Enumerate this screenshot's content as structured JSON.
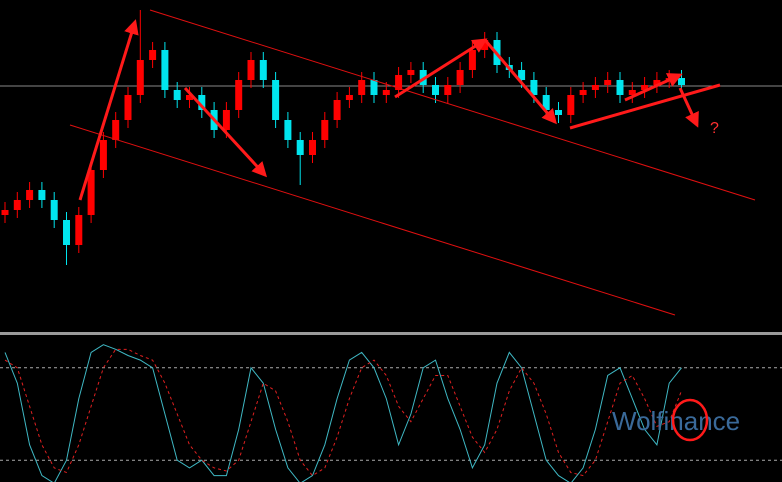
{
  "chart_data": [
    {
      "type": "candlestick",
      "up_color": "#ff0000",
      "down_color": "#00e5ee",
      "ylim": [
        0,
        330
      ],
      "open": [
        115,
        120,
        130,
        140,
        130,
        110,
        85,
        115,
        160,
        190,
        210,
        235,
        270,
        280,
        240,
        230,
        235,
        220,
        200,
        220,
        250,
        270,
        250,
        210,
        190,
        175,
        190,
        210,
        230,
        235,
        250,
        235,
        240,
        255,
        260,
        245,
        235,
        245,
        260,
        280,
        290,
        265,
        260,
        250,
        235,
        220,
        215,
        235,
        240,
        245,
        250,
        235,
        240,
        245,
        250,
        252
      ],
      "high": [
        128,
        138,
        148,
        148,
        138,
        118,
        123,
        168,
        198,
        218,
        243,
        320,
        288,
        288,
        248,
        243,
        243,
        228,
        228,
        258,
        278,
        278,
        258,
        218,
        198,
        198,
        218,
        238,
        243,
        258,
        258,
        248,
        263,
        268,
        268,
        253,
        253,
        268,
        288,
        298,
        298,
        273,
        268,
        258,
        243,
        228,
        243,
        248,
        253,
        258,
        258,
        248,
        253,
        258,
        260,
        260
      ],
      "low": [
        107,
        112,
        122,
        122,
        102,
        65,
        77,
        107,
        152,
        182,
        202,
        227,
        262,
        232,
        222,
        222,
        212,
        192,
        192,
        212,
        242,
        242,
        202,
        182,
        145,
        167,
        182,
        202,
        222,
        227,
        227,
        227,
        232,
        247,
        237,
        227,
        227,
        237,
        252,
        272,
        257,
        252,
        242,
        227,
        212,
        207,
        207,
        227,
        232,
        237,
        227,
        227,
        232,
        237,
        242,
        237
      ],
      "close": [
        120,
        130,
        140,
        130,
        110,
        85,
        115,
        160,
        190,
        210,
        235,
        270,
        280,
        240,
        230,
        235,
        220,
        200,
        220,
        250,
        270,
        250,
        210,
        190,
        175,
        190,
        210,
        230,
        235,
        250,
        235,
        240,
        255,
        260,
        245,
        235,
        245,
        260,
        280,
        290,
        265,
        260,
        250,
        235,
        220,
        215,
        235,
        240,
        245,
        250,
        235,
        240,
        245,
        250,
        252,
        245
      ],
      "annotations": [
        "?"
      ]
    },
    {
      "type": "line",
      "ylim": [
        0,
        100
      ],
      "yticks": [
        20,
        80
      ],
      "grid": true,
      "watermark": "Wolfinance",
      "series": [
        {
          "color": "#3fb8c4",
          "dash": false,
          "values": [
            90,
            70,
            30,
            10,
            5,
            20,
            60,
            90,
            95,
            92,
            88,
            85,
            80,
            50,
            20,
            15,
            20,
            10,
            10,
            40,
            80,
            70,
            40,
            15,
            5,
            10,
            30,
            60,
            85,
            90,
            80,
            60,
            30,
            50,
            80,
            85,
            60,
            40,
            15,
            30,
            70,
            90,
            80,
            50,
            20,
            10,
            5,
            15,
            40,
            75,
            80,
            60,
            40,
            30,
            70,
            80
          ]
        },
        {
          "color": "#e02020",
          "dash": true,
          "values": [
            85,
            80,
            55,
            30,
            15,
            12,
            30,
            55,
            80,
            92,
            92,
            88,
            85,
            70,
            50,
            30,
            20,
            15,
            13,
            20,
            45,
            70,
            65,
            45,
            20,
            10,
            15,
            35,
            60,
            80,
            85,
            75,
            55,
            45,
            60,
            75,
            75,
            55,
            35,
            25,
            40,
            65,
            80,
            70,
            50,
            25,
            12,
            10,
            20,
            45,
            70,
            75,
            60,
            42,
            45,
            65
          ]
        }
      ]
    }
  ]
}
